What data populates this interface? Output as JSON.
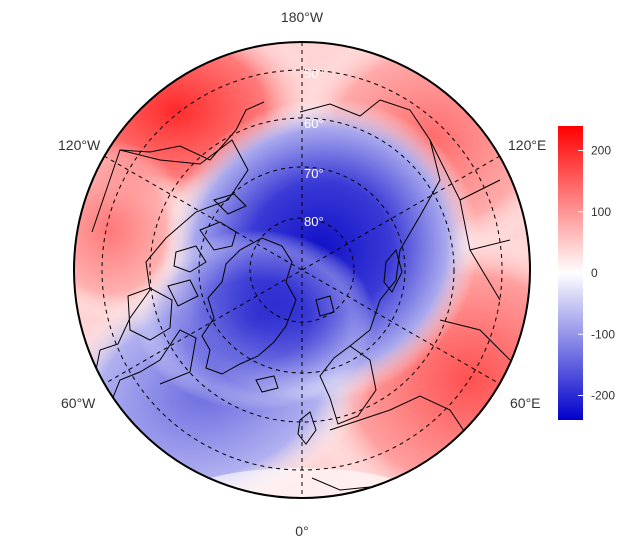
{
  "map": {
    "projection": "north polar stereographic",
    "longitude_labels": [
      "180°W",
      "120°E",
      "60°E",
      "0°",
      "60°W",
      "120°W"
    ],
    "latitude_labels": [
      "50°",
      "60°",
      "70°",
      "80°"
    ],
    "graticule": "dashed",
    "landmasses": [
      "North America",
      "Greenland",
      "Eurasia"
    ]
  },
  "field": {
    "description_colormap": "blue-white-red diverging",
    "regions": [
      {
        "name": "North Pole / Arctic Ocean",
        "value": -220
      },
      {
        "name": "Greenland",
        "value": -160
      },
      {
        "name": "North Atlantic",
        "value": -100
      },
      {
        "name": "Alaska / Bering",
        "value": 220
      },
      {
        "name": "Siberia",
        "value": 80
      },
      {
        "name": "Europe",
        "value": 170
      }
    ]
  },
  "colorbar": {
    "ticks": [
      "200",
      "100",
      "0",
      "-100",
      "-200"
    ],
    "tick_values": [
      200,
      100,
      0,
      -100,
      -200
    ],
    "min": -240,
    "max": 240,
    "colors": {
      "low": "#0000cc",
      "mid": "#ffffff",
      "high": "#ff0000"
    }
  }
}
